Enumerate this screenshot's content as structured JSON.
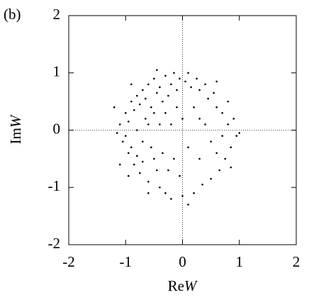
{
  "chart_data": {
    "type": "scatter",
    "panel_label": "(b)",
    "xlabel": [
      "Re",
      "W"
    ],
    "ylabel": [
      "Im",
      "W"
    ],
    "xlim": [
      -2,
      2
    ],
    "ylim": [
      -2,
      2
    ],
    "xticks": [
      -2,
      -1,
      0,
      1,
      2
    ],
    "yticks": [
      -2,
      -1,
      0,
      1,
      2
    ],
    "zero_lines": true,
    "color": "#000000",
    "x": [
      -1.1,
      -1.05,
      -1.0,
      -0.95,
      -0.9,
      -0.85,
      -0.8,
      -0.8,
      -0.75,
      -0.7,
      -0.7,
      -0.65,
      -0.6,
      -0.6,
      -0.55,
      -0.5,
      -0.5,
      -0.45,
      -0.4,
      -0.4,
      -0.35,
      -0.3,
      -0.3,
      -0.25,
      -0.2,
      -0.2,
      -0.15,
      -0.1,
      -0.05,
      0.0,
      0.05,
      0.1,
      0.15,
      0.2,
      0.25,
      0.3,
      0.35,
      0.4,
      0.45,
      0.5,
      0.55,
      0.6,
      0.65,
      0.7,
      0.75,
      0.8,
      0.85,
      0.9,
      0.95,
      1.0,
      -1.15,
      -1.0,
      -0.95,
      -0.9,
      -0.85,
      -0.8,
      -0.75,
      -0.7,
      -0.65,
      -0.6,
      -0.55,
      -0.5,
      -0.45,
      -0.4,
      -0.35,
      -0.3,
      -0.25,
      -0.2,
      -0.15,
      -0.1,
      -0.05,
      0.0,
      0.1,
      0.2,
      0.3,
      0.4,
      0.5,
      0.6,
      0.7,
      0.3,
      -0.9,
      -1.2,
      -1.1,
      -0.95,
      0.6,
      0.8,
      0.85,
      -0.6,
      0.1,
      -0.45
    ],
    "y": [
      0.1,
      -0.2,
      0.3,
      -0.4,
      0.5,
      -0.6,
      0.6,
      0.0,
      -0.75,
      0.7,
      -0.2,
      0.2,
      0.8,
      -0.9,
      0.4,
      -0.5,
      0.9,
      0.65,
      -1.0,
      0.75,
      0.5,
      0.95,
      -1.1,
      0.6,
      0.8,
      -1.2,
      1.0,
      0.7,
      0.9,
      -1.15,
      0.85,
      1.0,
      0.75,
      -1.1,
      0.9,
      0.7,
      -0.95,
      0.8,
      0.55,
      -0.85,
      0.65,
      0.4,
      -0.7,
      0.3,
      -0.5,
      0.1,
      -0.3,
      0.2,
      -0.1,
      -0.05,
      -0.05,
      -0.1,
      0.15,
      -0.3,
      0.35,
      -0.45,
      0.45,
      -0.55,
      0.55,
      0.1,
      -0.3,
      0.3,
      -0.7,
      0.1,
      -0.4,
      0.3,
      -0.7,
      0.1,
      -0.5,
      0.4,
      -0.8,
      0.2,
      -0.3,
      0.4,
      -0.5,
      0.1,
      -0.2,
      -0.4,
      -0.1,
      0.2,
      0.8,
      0.4,
      -0.6,
      -0.8,
      0.85,
      0.5,
      -0.65,
      -1.1,
      -1.3,
      1.05
    ]
  }
}
